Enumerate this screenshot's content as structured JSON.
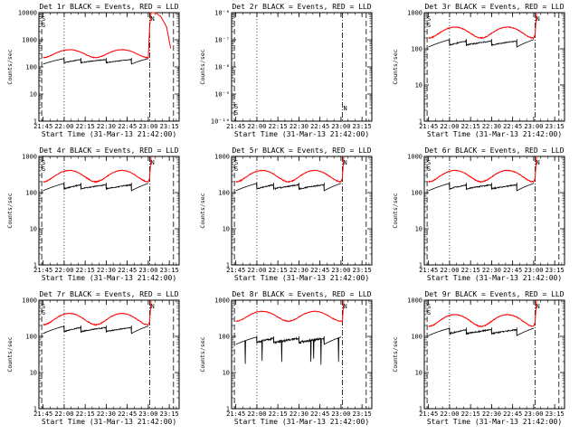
{
  "colors": {
    "events": "#000000",
    "lld": "#ff0000",
    "background": "#ffffff"
  },
  "chart_data": [
    {
      "type": "line",
      "title": "Det 1r BLACK = Events, RED = LLD",
      "xlabel": "Start Time (31-Mar-13 21:42:00)",
      "ylabel": "Counts/sec",
      "yscale": "log",
      "ylim": [
        1,
        10000
      ],
      "yticks": [
        "1",
        "10",
        "100",
        "1000",
        "10000"
      ],
      "xlim": [
        "21:42",
        "23:22"
      ],
      "xticks": [
        "21:45",
        "22:00",
        "22:15",
        "22:30",
        "22:45",
        "23:00",
        "23:15"
      ],
      "profile": "normal",
      "events_level": 170,
      "events_peak": 210,
      "lld_base": 210,
      "lld_peak": 420,
      "end_spike": 12000,
      "labels": [
        "S",
        "S",
        "N"
      ]
    },
    {
      "type": "line",
      "title": "Det 2r BLACK = Events, RED = LLD",
      "xlabel": "Start Time (31-Mar-13 21:42:00)",
      "ylabel": "Counts/sec",
      "yscale": "log",
      "ylim": [
        1e-10,
        1e-06
      ],
      "yticks": [
        "10⁻¹⁰",
        "10⁻⁹",
        "10⁻⁸",
        "10⁻⁷",
        "10⁻⁶"
      ],
      "xlim": [
        "21:42",
        "23:22"
      ],
      "xticks": [
        "21:45",
        "22:00",
        "22:15",
        "22:30",
        "22:45",
        "23:00",
        "23:15"
      ],
      "profile": "empty",
      "labels": [
        "S",
        "S",
        "N"
      ]
    },
    {
      "type": "line",
      "title": "Det 3r BLACK = Events, RED = LLD",
      "xlabel": "Start Time (31-Mar-13 21:42:00)",
      "ylabel": "Counts/sec",
      "yscale": "log",
      "ylim": [
        1,
        1000
      ],
      "yticks": [
        "1",
        "10",
        "100",
        "1000"
      ],
      "xlim": [
        "21:42",
        "23:22"
      ],
      "xticks": [
        "21:45",
        "22:00",
        "22:15",
        "22:30",
        "22:45",
        "23:00",
        "23:15"
      ],
      "profile": "normal",
      "events_level": 150,
      "events_peak": 190,
      "lld_base": 190,
      "lld_peak": 390,
      "end_spike": 1000,
      "labels": [
        "S",
        "S",
        "N"
      ]
    },
    {
      "type": "line",
      "title": "Det 4r BLACK = Events, RED = LLD",
      "xlabel": "Start Time (31-Mar-13 21:42:00)",
      "ylabel": "Counts/sec",
      "yscale": "log",
      "ylim": [
        1,
        1000
      ],
      "yticks": [
        "1",
        "10",
        "100",
        "1000"
      ],
      "xlim": [
        "21:42",
        "23:22"
      ],
      "xticks": [
        "21:45",
        "22:00",
        "22:15",
        "22:30",
        "22:45",
        "23:00",
        "23:15"
      ],
      "profile": "normal",
      "events_level": 150,
      "events_peak": 190,
      "lld_base": 190,
      "lld_peak": 400,
      "end_spike": 1000,
      "labels": [
        "S",
        "S",
        "N"
      ]
    },
    {
      "type": "line",
      "title": "Det 5r BLACK = Events, RED = LLD",
      "xlabel": "Start Time (31-Mar-13 21:42:00)",
      "ylabel": "Counts/sec",
      "yscale": "log",
      "ylim": [
        1,
        1000
      ],
      "yticks": [
        "1",
        "10",
        "100",
        "1000"
      ],
      "xlim": [
        "21:42",
        "23:22"
      ],
      "xticks": [
        "21:45",
        "22:00",
        "22:15",
        "22:30",
        "22:45",
        "23:00",
        "23:15"
      ],
      "profile": "normal",
      "events_level": 150,
      "events_peak": 190,
      "lld_base": 190,
      "lld_peak": 400,
      "end_spike": 1000,
      "labels": [
        "S",
        "S",
        "N"
      ]
    },
    {
      "type": "line",
      "title": "Det 6r BLACK = Events, RED = LLD",
      "xlabel": "Start Time (31-Mar-13 21:42:00)",
      "ylabel": "Counts/sec",
      "yscale": "log",
      "ylim": [
        1,
        1000
      ],
      "yticks": [
        "1",
        "10",
        "100",
        "1000"
      ],
      "xlim": [
        "21:42",
        "23:22"
      ],
      "xticks": [
        "21:45",
        "22:00",
        "22:15",
        "22:30",
        "22:45",
        "23:00",
        "23:15"
      ],
      "profile": "normal",
      "events_level": 150,
      "events_peak": 190,
      "lld_base": 190,
      "lld_peak": 400,
      "end_spike": 1000,
      "labels": [
        "S",
        "S",
        "N"
      ]
    },
    {
      "type": "line",
      "title": "Det 7r BLACK = Events, RED = LLD",
      "xlabel": "Start Time (31-Mar-13 21:42:00)",
      "ylabel": "Counts/sec",
      "yscale": "log",
      "ylim": [
        1,
        1000
      ],
      "yticks": [
        "1",
        "10",
        "100",
        "1000"
      ],
      "xlim": [
        "21:42",
        "23:22"
      ],
      "xticks": [
        "21:45",
        "22:00",
        "22:15",
        "22:30",
        "22:45",
        "23:00",
        "23:15"
      ],
      "profile": "normal",
      "events_level": 160,
      "events_peak": 200,
      "lld_base": 200,
      "lld_peak": 420,
      "end_spike": 1000,
      "labels": [
        "S",
        "S",
        "N"
      ]
    },
    {
      "type": "line",
      "title": "Det 8r BLACK = Events, RED = LLD",
      "xlabel": "Start Time (31-Mar-13 21:42:00)",
      "ylabel": "Counts/sec",
      "yscale": "log",
      "ylim": [
        1,
        1000
      ],
      "yticks": [
        "1",
        "10",
        "100",
        "1000"
      ],
      "xlim": [
        "21:42",
        "23:22"
      ],
      "xticks": [
        "21:45",
        "22:00",
        "22:15",
        "22:30",
        "22:45",
        "23:00",
        "23:15"
      ],
      "profile": "noisy",
      "events_level": 80,
      "events_peak": 110,
      "lld_base": 250,
      "lld_peak": 480,
      "end_spike": 1000,
      "labels": [
        "N"
      ]
    },
    {
      "type": "line",
      "title": "Det 9r BLACK = Events, RED = LLD",
      "xlabel": "Start Time (31-Mar-13 21:42:00)",
      "ylabel": "Counts/sec",
      "yscale": "log",
      "ylim": [
        1,
        1000
      ],
      "yticks": [
        "1",
        "10",
        "100",
        "1000"
      ],
      "xlim": [
        "21:42",
        "23:22"
      ],
      "xticks": [
        "21:45",
        "22:00",
        "22:15",
        "22:30",
        "22:45",
        "23:00",
        "23:15"
      ],
      "profile": "normal",
      "events_level": 140,
      "events_peak": 180,
      "lld_base": 180,
      "lld_peak": 390,
      "end_spike": 1000,
      "labels": [
        "S",
        "S",
        "N"
      ]
    }
  ]
}
